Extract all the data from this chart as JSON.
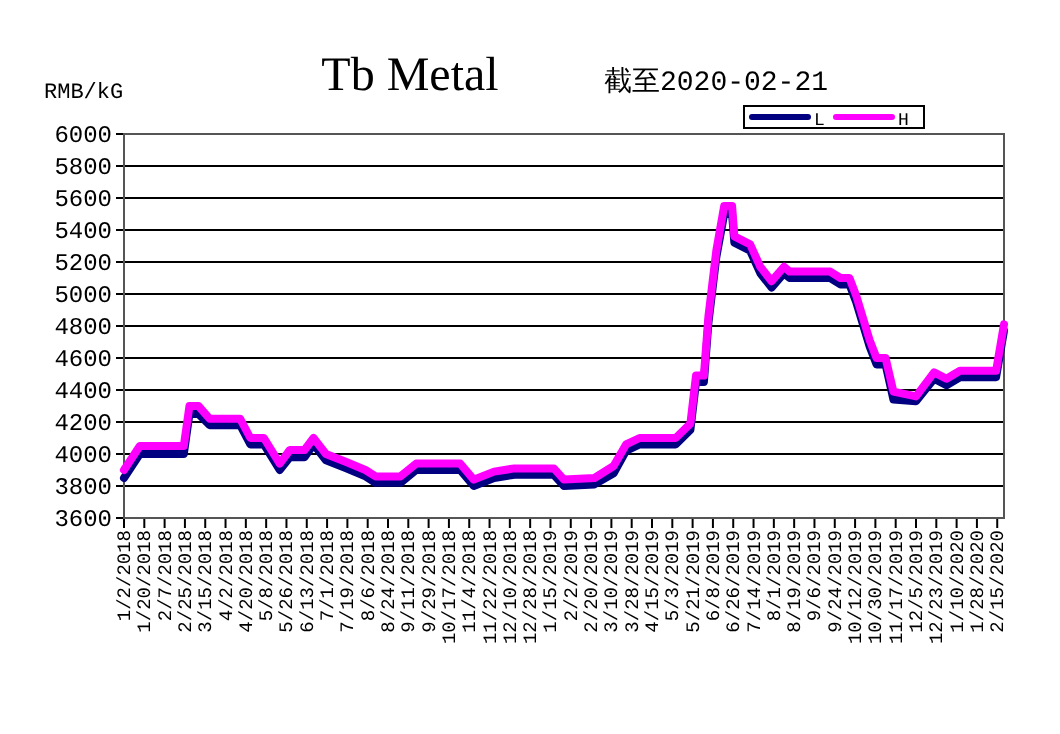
{
  "chart_data": {
    "type": "step",
    "title": "Tb Metal",
    "subtitle": "截至2020-02-21",
    "ylabel": "RMB/kG",
    "x": [
      "2018-01-02",
      "2018-01-16",
      "2018-02-24",
      "2018-03-01",
      "2018-03-09",
      "2018-03-19",
      "2018-04-15",
      "2018-04-24",
      "2018-05-06",
      "2018-05-20",
      "2018-05-29",
      "2018-06-11",
      "2018-06-19",
      "2018-06-30",
      "2018-07-18",
      "2018-08-04",
      "2018-08-13",
      "2018-09-04",
      "2018-09-18",
      "2018-10-27",
      "2018-11-08",
      "2018-11-26",
      "2018-12-14",
      "2019-01-18",
      "2019-01-27",
      "2019-02-23",
      "2019-03-12",
      "2019-03-23",
      "2019-04-04",
      "2019-05-06",
      "2019-05-19",
      "2019-05-24",
      "2019-05-31",
      "2019-06-04",
      "2019-06-11",
      "2019-06-18",
      "2019-06-25",
      "2019-06-27",
      "2019-07-11",
      "2019-07-20",
      "2019-07-30",
      "2019-08-10",
      "2019-08-15",
      "2019-09-20",
      "2019-09-29",
      "2019-10-07",
      "2019-10-13",
      "2019-10-25",
      "2019-10-31",
      "2019-11-08",
      "2019-11-15",
      "2019-12-05",
      "2019-12-21",
      "2020-01-01",
      "2020-01-13",
      "2020-02-14",
      "2020-02-21"
    ],
    "series": [
      {
        "name": "L",
        "color": "#000080",
        "values": [
          3850,
          4000,
          4000,
          4250,
          4250,
          4180,
          4180,
          4060,
          4060,
          3900,
          3980,
          3980,
          4060,
          3960,
          3910,
          3860,
          3820,
          3820,
          3900,
          3900,
          3800,
          3850,
          3870,
          3870,
          3800,
          3810,
          3880,
          4020,
          4060,
          4060,
          4150,
          4450,
          4450,
          4820,
          5230,
          5500,
          5500,
          5320,
          5270,
          5130,
          5040,
          5130,
          5100,
          5100,
          5060,
          5060,
          4950,
          4670,
          4560,
          4560,
          4340,
          4330,
          4470,
          4430,
          4480,
          4480,
          4770
        ]
      },
      {
        "name": "H",
        "color": "#ff00ff",
        "values": [
          3900,
          4050,
          4050,
          4300,
          4300,
          4220,
          4220,
          4100,
          4100,
          3940,
          4025,
          4025,
          4100,
          4000,
          3950,
          3900,
          3860,
          3860,
          3940,
          3940,
          3840,
          3890,
          3910,
          3910,
          3840,
          3850,
          3925,
          4060,
          4100,
          4100,
          4190,
          4490,
          4490,
          4860,
          5270,
          5550,
          5550,
          5360,
          5310,
          5170,
          5080,
          5170,
          5140,
          5140,
          5100,
          5100,
          4990,
          4710,
          4600,
          4600,
          4390,
          4360,
          4510,
          4470,
          4520,
          4520,
          4810
        ]
      }
    ],
    "xlim": [
      "2018-01-02",
      "2020-02-21"
    ],
    "xticks": [
      {
        "value": "2018-01-02",
        "label": "1/2/2018"
      },
      {
        "value": "2018-01-20",
        "label": "1/20/2018"
      },
      {
        "value": "2018-02-07",
        "label": "2/7/2018"
      },
      {
        "value": "2018-02-25",
        "label": "2/25/2018"
      },
      {
        "value": "2018-03-15",
        "label": "3/15/2018"
      },
      {
        "value": "2018-04-02",
        "label": "4/2/2018"
      },
      {
        "value": "2018-04-20",
        "label": "4/20/2018"
      },
      {
        "value": "2018-05-08",
        "label": "5/8/2018"
      },
      {
        "value": "2018-05-26",
        "label": "5/26/2018"
      },
      {
        "value": "2018-06-13",
        "label": "6/13/2018"
      },
      {
        "value": "2018-07-01",
        "label": "7/1/2018"
      },
      {
        "value": "2018-07-19",
        "label": "7/19/2018"
      },
      {
        "value": "2018-08-06",
        "label": "8/6/2018"
      },
      {
        "value": "2018-08-24",
        "label": "8/24/2018"
      },
      {
        "value": "2018-09-11",
        "label": "9/11/2018"
      },
      {
        "value": "2018-09-29",
        "label": "9/29/2018"
      },
      {
        "value": "2018-10-17",
        "label": "10/17/2018"
      },
      {
        "value": "2018-11-04",
        "label": "11/4/2018"
      },
      {
        "value": "2018-11-22",
        "label": "11/22/2018"
      },
      {
        "value": "2018-12-10",
        "label": "12/10/2018"
      },
      {
        "value": "2018-12-28",
        "label": "12/28/2018"
      },
      {
        "value": "2019-01-15",
        "label": "1/15/2019"
      },
      {
        "value": "2019-02-02",
        "label": "2/2/2019"
      },
      {
        "value": "2019-02-20",
        "label": "2/20/2019"
      },
      {
        "value": "2019-03-10",
        "label": "3/10/2019"
      },
      {
        "value": "2019-03-28",
        "label": "3/28/2019"
      },
      {
        "value": "2019-04-15",
        "label": "4/15/2019"
      },
      {
        "value": "2019-05-03",
        "label": "5/3/2019"
      },
      {
        "value": "2019-05-21",
        "label": "5/21/2019"
      },
      {
        "value": "2019-06-08",
        "label": "6/8/2019"
      },
      {
        "value": "2019-06-26",
        "label": "6/26/2019"
      },
      {
        "value": "2019-07-14",
        "label": "7/14/2019"
      },
      {
        "value": "2019-08-01",
        "label": "8/1/2019"
      },
      {
        "value": "2019-08-19",
        "label": "8/19/2019"
      },
      {
        "value": "2019-09-06",
        "label": "9/6/2019"
      },
      {
        "value": "2019-09-24",
        "label": "9/24/2019"
      },
      {
        "value": "2019-10-12",
        "label": "10/12/2019"
      },
      {
        "value": "2019-10-30",
        "label": "10/30/2019"
      },
      {
        "value": "2019-11-17",
        "label": "11/17/2019"
      },
      {
        "value": "2019-12-05",
        "label": "12/5/2019"
      },
      {
        "value": "2019-12-23",
        "label": "12/23/2019"
      },
      {
        "value": "2020-01-10",
        "label": "1/10/2020"
      },
      {
        "value": "2020-01-28",
        "label": "1/28/2020"
      },
      {
        "value": "2020-02-15",
        "label": "2/15/2020"
      }
    ],
    "ylim": [
      3600,
      6000
    ],
    "yticks": [
      3600,
      3800,
      4000,
      4200,
      4400,
      4600,
      4800,
      5000,
      5200,
      5400,
      5600,
      5800,
      6000
    ],
    "grid": "y",
    "legend": "top right",
    "line_style": "solid"
  }
}
